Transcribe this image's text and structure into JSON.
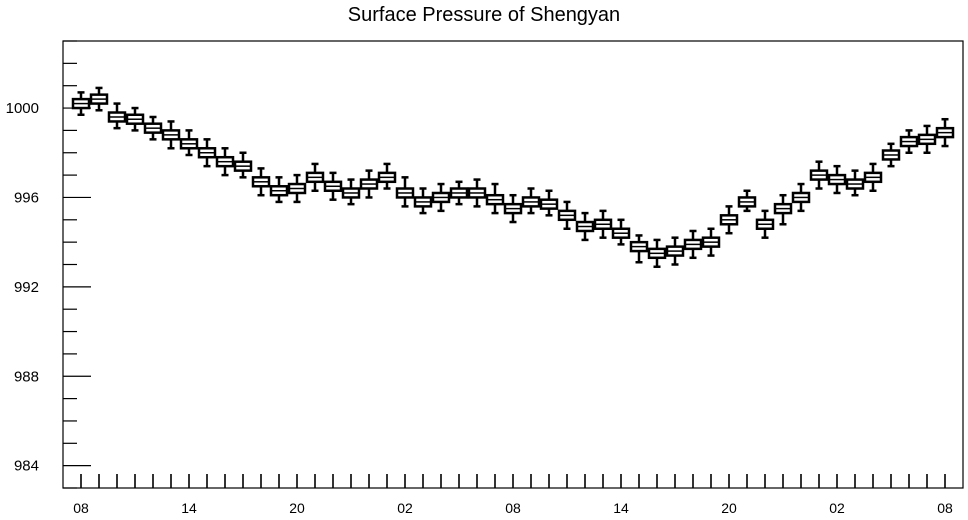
{
  "chart_data": {
    "type": "boxplot",
    "title": "Surface Pressure of Shengyan",
    "xlabel": "",
    "ylabel": "",
    "ylim": [
      983,
      1003
    ],
    "y_ticks": [
      "984",
      "988",
      "992",
      "996",
      "1000"
    ],
    "x_ticks": [
      "08",
      "14",
      "20",
      "02",
      "08",
      "14",
      "20",
      "02",
      "08"
    ],
    "grid": false,
    "colors": {
      "box": "#000000",
      "background": "#ffffff"
    },
    "series": [
      {
        "medians": [
          1000.2,
          1000.4,
          999.6,
          999.5,
          999.1,
          998.8,
          998.4,
          998.0,
          997.6,
          997.4,
          996.7,
          996.3,
          996.4,
          996.9,
          996.5,
          996.2,
          996.6,
          996.9,
          996.2,
          995.8,
          996.0,
          996.2,
          996.2,
          995.9,
          995.5,
          995.8,
          995.7,
          995.2,
          994.7,
          994.8,
          994.4,
          993.8,
          993.5,
          993.6,
          993.9,
          994.0,
          995.0,
          995.8,
          994.8,
          995.5,
          996.0,
          997.0,
          996.8,
          996.6,
          996.9,
          997.9,
          998.5,
          998.6,
          998.9
        ],
        "q1": [
          1000.0,
          1000.2,
          999.4,
          999.3,
          998.9,
          998.6,
          998.2,
          997.8,
          997.4,
          997.2,
          996.5,
          996.1,
          996.2,
          996.7,
          996.3,
          996.0,
          996.4,
          996.7,
          996.0,
          995.6,
          995.8,
          996.0,
          996.0,
          995.7,
          995.3,
          995.6,
          995.5,
          995.0,
          994.5,
          994.6,
          994.2,
          993.6,
          993.3,
          993.4,
          993.7,
          993.8,
          994.8,
          995.6,
          994.6,
          995.3,
          995.8,
          996.8,
          996.6,
          996.4,
          996.7,
          997.7,
          998.3,
          998.4,
          998.7
        ],
        "q3": [
          1000.4,
          1000.6,
          999.8,
          999.7,
          999.3,
          999.0,
          998.6,
          998.2,
          997.8,
          997.6,
          996.9,
          996.5,
          996.6,
          997.1,
          996.7,
          996.4,
          996.8,
          997.1,
          996.4,
          996.0,
          996.2,
          996.4,
          996.4,
          996.1,
          995.7,
          996.0,
          995.9,
          995.4,
          994.9,
          995.0,
          994.6,
          994.0,
          993.7,
          993.8,
          994.1,
          994.2,
          995.2,
          996.0,
          995.0,
          995.7,
          996.2,
          997.2,
          997.0,
          996.8,
          997.1,
          998.1,
          998.7,
          998.8,
          999.1
        ],
        "lower_whisker": [
          999.7,
          999.9,
          999.1,
          999.0,
          998.6,
          998.2,
          997.9,
          997.4,
          997.0,
          996.9,
          996.1,
          995.8,
          995.8,
          996.3,
          995.9,
          995.7,
          996.0,
          996.4,
          995.6,
          995.3,
          995.4,
          995.7,
          995.6,
          995.3,
          994.9,
          995.3,
          995.2,
          994.6,
          994.1,
          994.2,
          993.9,
          993.1,
          992.9,
          993.0,
          993.3,
          993.4,
          994.4,
          995.4,
          994.2,
          994.8,
          995.4,
          996.4,
          996.2,
          996.1,
          996.3,
          997.4,
          998.0,
          998.0,
          998.3
        ],
        "upper_whisker": [
          1000.7,
          1000.9,
          1000.2,
          1000.0,
          999.6,
          999.4,
          999.0,
          998.6,
          998.2,
          998.0,
          997.3,
          996.9,
          997.0,
          997.5,
          997.1,
          996.8,
          997.2,
          997.5,
          996.9,
          996.4,
          996.6,
          996.7,
          996.8,
          996.6,
          996.1,
          996.4,
          996.3,
          995.8,
          995.3,
          995.4,
          995.0,
          994.3,
          994.1,
          994.2,
          994.5,
          994.6,
          995.6,
          996.3,
          995.4,
          996.1,
          996.6,
          997.6,
          997.4,
          997.2,
          997.5,
          998.4,
          999.0,
          999.2,
          999.5
        ]
      }
    ]
  }
}
